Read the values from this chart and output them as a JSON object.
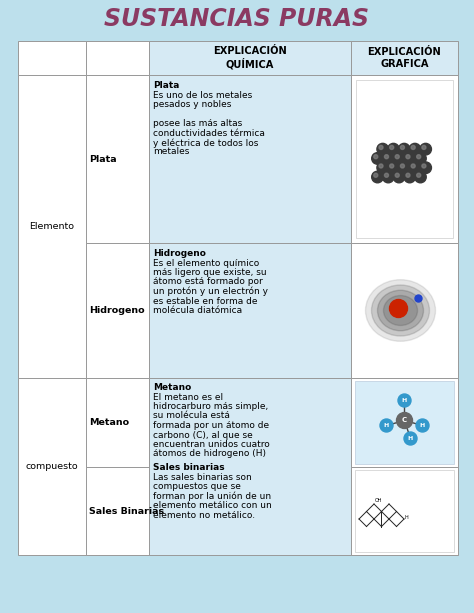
{
  "title": "SUSTANCIAS PURAS",
  "title_color": "#8B3A62",
  "bg_color": "#bde0ec",
  "cell_bg": "#d6eaf4",
  "border_color": "#999999",
  "header_col2": "EXPLICACIÓN\nQUÍMICA",
  "header_col3": "EXPLICACIÓN\nGRAFICA",
  "plata_label": "Plata",
  "hidrogeno_label": "Hidrogeno",
  "elemento_label": "Elemento",
  "compuesto_label": "compuesto",
  "metano_label": "Metano",
  "sales_label": "Sales Binarias",
  "plata_text_bold": "Plata",
  "plata_text_body": "Es uno de los metales\npesados y nobles\n\nposee las más altas\nconductividades térmica\ny eléctrica de todos los\nmetales",
  "hidro_text_bold": "Hidrogeno",
  "hidro_text_body": "Es el elemento químico\nmás ligero que existe, su\nátomo está formado por\nun protón y un electrón y\nes estable en forma de\nmolécula diatómica",
  "metano_text_bold": "Metano",
  "metano_text_body": "El metano es el\nhidrocarburo más simple,\nsu molécula está\nformada por un átomo de\ncarbono (C), al que se\nencuentran unidos cuatro\nátomos de hidrogeno (H)",
  "sales_text_bold": "Sales binarias",
  "sales_text_body": "Las sales binarias son\ncompuestos que se\nforman por la unión de un\nelemento metálico con un\nelemento no metálico."
}
